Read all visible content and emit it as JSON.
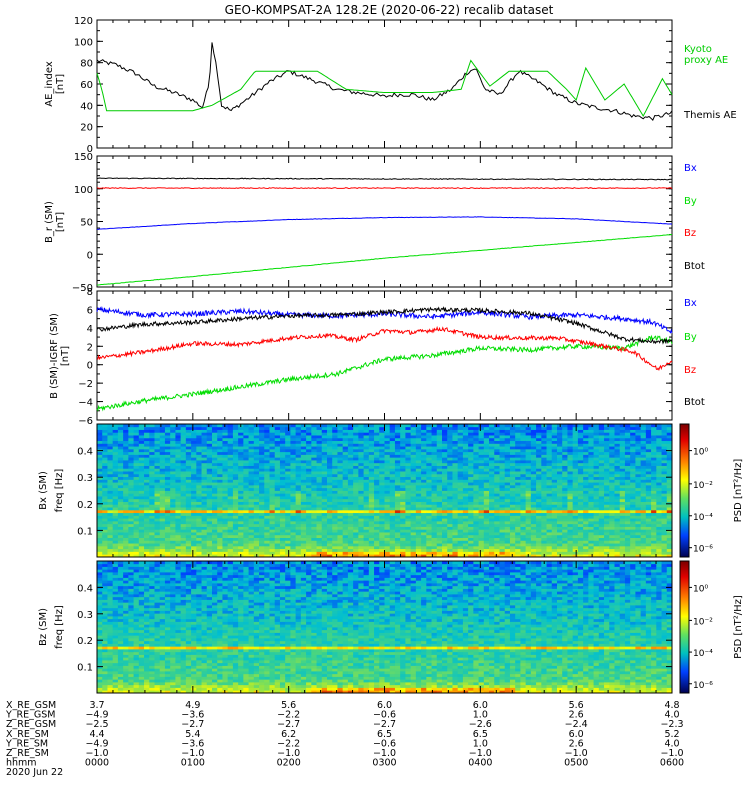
{
  "title": "GEO-KOMPSAT-2A 128.2E (2020-06-22) recalib dataset",
  "colors": {
    "black": "#000000",
    "green": "#00dd00",
    "blue": "#0000ff",
    "red": "#ff0000",
    "kyoto": "#00cc00"
  },
  "chart_data": [
    {
      "type": "line",
      "ylabel": "AE_index\n[nT]",
      "ylim": [
        0,
        120
      ],
      "yticks": [
        "0",
        "20",
        "40",
        "60",
        "80",
        "100",
        "120"
      ],
      "xlim": [
        0,
        6
      ],
      "series": [
        {
          "name": "Themis AE",
          "color_key": "black",
          "x": [
            0,
            0.2,
            0.4,
            0.6,
            0.8,
            1.0,
            1.1,
            1.17,
            1.2,
            1.25,
            1.3,
            1.4,
            1.6,
            1.8,
            2.0,
            2.3,
            2.5,
            2.7,
            2.9,
            3.0,
            3.1,
            3.3,
            3.5,
            3.7,
            3.85,
            3.95,
            4.05,
            4.2,
            4.4,
            4.6,
            4.8,
            5.0,
            5.2,
            5.4,
            5.6,
            5.8,
            6.0
          ],
          "y": [
            82,
            78,
            70,
            58,
            52,
            45,
            38,
            60,
            100,
            75,
            40,
            35,
            48,
            62,
            72,
            62,
            55,
            52,
            50,
            48,
            50,
            50,
            45,
            55,
            70,
            75,
            55,
            50,
            72,
            62,
            50,
            42,
            38,
            35,
            30,
            28,
            33
          ]
        },
        {
          "name": "Kyoto proxy AE",
          "color_key": "kyoto",
          "x": [
            0,
            0.05,
            0.1,
            1.0,
            1.2,
            1.5,
            1.65,
            1.7,
            2.0,
            2.3,
            2.6,
            3.0,
            3.5,
            3.8,
            3.9,
            4.0,
            4.1,
            4.3,
            4.5,
            4.7,
            4.9,
            5.0,
            5.1,
            5.3,
            5.5,
            5.7,
            5.9,
            6.0
          ],
          "y": [
            70,
            55,
            35,
            35,
            40,
            55,
            72,
            72,
            72,
            72,
            55,
            52,
            52,
            55,
            82,
            70,
            58,
            72,
            72,
            72,
            55,
            45,
            75,
            45,
            60,
            30,
            65,
            50
          ]
        }
      ]
    },
    {
      "type": "line",
      "ylabel": "B_r (SM)\n[nT]",
      "ylim": [
        -50,
        150
      ],
      "yticks": [
        "-50",
        "0",
        "50",
        "100",
        "150"
      ],
      "xlim": [
        0,
        6
      ],
      "series": [
        {
          "name": "Bx",
          "color_key": "blue",
          "x": [
            0,
            1,
            2,
            3,
            4,
            5,
            6
          ],
          "y": [
            38,
            47,
            53,
            56,
            57,
            54,
            46
          ]
        },
        {
          "name": "By",
          "color_key": "green",
          "x": [
            0,
            1,
            2,
            3,
            4,
            5,
            6
          ],
          "y": [
            -47,
            -34,
            -20,
            -6,
            6,
            18,
            30
          ]
        },
        {
          "name": "Bz",
          "color_key": "red",
          "x": [
            0,
            6
          ],
          "y": [
            101,
            101
          ]
        },
        {
          "name": "Btot",
          "color_key": "black",
          "x": [
            0,
            6
          ],
          "y": [
            116,
            114
          ]
        }
      ]
    },
    {
      "type": "line",
      "ylabel": "B (SM)-IGRF (SM)\n[nT]",
      "ylim": [
        -6,
        8
      ],
      "yticks": [
        "-6",
        "-4",
        "-2",
        "0",
        "2",
        "4",
        "6",
        "8"
      ],
      "xlim": [
        0,
        6
      ],
      "series": [
        {
          "name": "Bx",
          "color_key": "blue",
          "x": [
            0,
            0.5,
            1.0,
            1.5,
            2.0,
            2.5,
            3.0,
            3.5,
            4.0,
            4.5,
            5.0,
            5.5,
            5.8,
            6.0
          ],
          "y": [
            6.0,
            5.4,
            5.5,
            5.8,
            5.4,
            5.3,
            5.5,
            5.2,
            5.7,
            5.2,
            5.4,
            5.0,
            4.6,
            3.5
          ]
        },
        {
          "name": "By",
          "color_key": "green",
          "x": [
            0,
            0.5,
            1.0,
            1.5,
            2.0,
            2.5,
            3.0,
            3.5,
            4.0,
            4.5,
            5.0,
            5.5,
            5.8,
            6.0
          ],
          "y": [
            -4.8,
            -3.9,
            -3.2,
            -2.4,
            -1.6,
            -1.0,
            0.6,
            1.0,
            1.8,
            1.6,
            2.0,
            1.8,
            3.0,
            2.5
          ]
        },
        {
          "name": "Bz",
          "color_key": "red",
          "x": [
            0,
            0.5,
            1.0,
            1.5,
            2.0,
            2.4,
            2.7,
            3.0,
            3.3,
            3.6,
            4.0,
            4.4,
            4.8,
            5.2,
            5.6,
            5.85,
            6.0
          ],
          "y": [
            0.7,
            1.4,
            2.3,
            2.2,
            2.9,
            3.2,
            2.7,
            3.7,
            3.5,
            3.9,
            3.0,
            2.9,
            2.9,
            2.2,
            1.4,
            -0.5,
            0.5
          ]
        },
        {
          "name": "Btot",
          "color_key": "black",
          "x": [
            0,
            0.5,
            1.0,
            1.5,
            2.0,
            2.5,
            3.0,
            3.5,
            4.0,
            4.5,
            5.0,
            5.5,
            5.8,
            6.0
          ],
          "y": [
            3.8,
            4.4,
            4.6,
            5.0,
            5.3,
            5.4,
            5.7,
            6.0,
            5.9,
            5.6,
            4.5,
            2.8,
            2.5,
            2.6
          ]
        }
      ]
    },
    {
      "type": "heatmap",
      "ylabel": "Bx (SM)\nfreq [Hz]",
      "yticks": [
        "0.1",
        "0.2",
        "0.3",
        "0.4"
      ],
      "ylim": [
        0,
        0.5
      ],
      "colorbar_label": "PSD [nT²/Hz]",
      "colorbar_ticks": [
        "10⁰",
        "10⁻²",
        "10⁻⁴",
        "10⁻⁶"
      ]
    },
    {
      "type": "heatmap",
      "ylabel": "Bz (SM)\nfreq [Hz]",
      "yticks": [
        "0.1",
        "0.2",
        "0.3",
        "0.4"
      ],
      "ylim": [
        0,
        0.5
      ],
      "colorbar_label": "PSD [nT²/Hz]",
      "colorbar_ticks": [
        "10⁰",
        "10⁻²",
        "10⁻⁴",
        "10⁻⁶"
      ]
    }
  ],
  "legends": {
    "ae": [
      "Kyoto\nproxy AE",
      "Themis AE"
    ],
    "b": [
      "Bx",
      "By",
      "Bz",
      "Btot"
    ],
    "db": [
      "Bx",
      "By",
      "Bz",
      "Btot"
    ]
  },
  "orbit_table": {
    "rows": [
      {
        "label": "X_RE_GSM",
        "values": [
          "3.7",
          "4.9",
          "5.6",
          "6.0",
          "6.0",
          "5.6",
          "4.8"
        ]
      },
      {
        "label": "Y_RE_GSM",
        "values": [
          "-4.9",
          "-3.6",
          "-2.2",
          "-0.6",
          "1.0",
          "2.6",
          "4.0"
        ]
      },
      {
        "label": "Z_RE_GSM",
        "values": [
          "-2.5",
          "-2.7",
          "-2.7",
          "-2.7",
          "-2.6",
          "-2.4",
          "-2.3"
        ]
      },
      {
        "label": "X_RE_SM",
        "values": [
          "4.4",
          "5.4",
          "6.2",
          "6.5",
          "6.5",
          "6.0",
          "5.2"
        ]
      },
      {
        "label": "Y_RE_SM",
        "values": [
          "-4.9",
          "-3.6",
          "-2.2",
          "-0.6",
          "1.0",
          "2.6",
          "4.0"
        ]
      },
      {
        "label": "Z_RE_SM",
        "values": [
          "-1.0",
          "-1.0",
          "-1.0",
          "-1.0",
          "-1.0",
          "-1.0",
          "-1.0"
        ]
      },
      {
        "label": "hhmm",
        "values": [
          "0000",
          "0100",
          "0200",
          "0300",
          "0400",
          "0500",
          "0600"
        ]
      }
    ],
    "date": "2020 Jun 22"
  }
}
